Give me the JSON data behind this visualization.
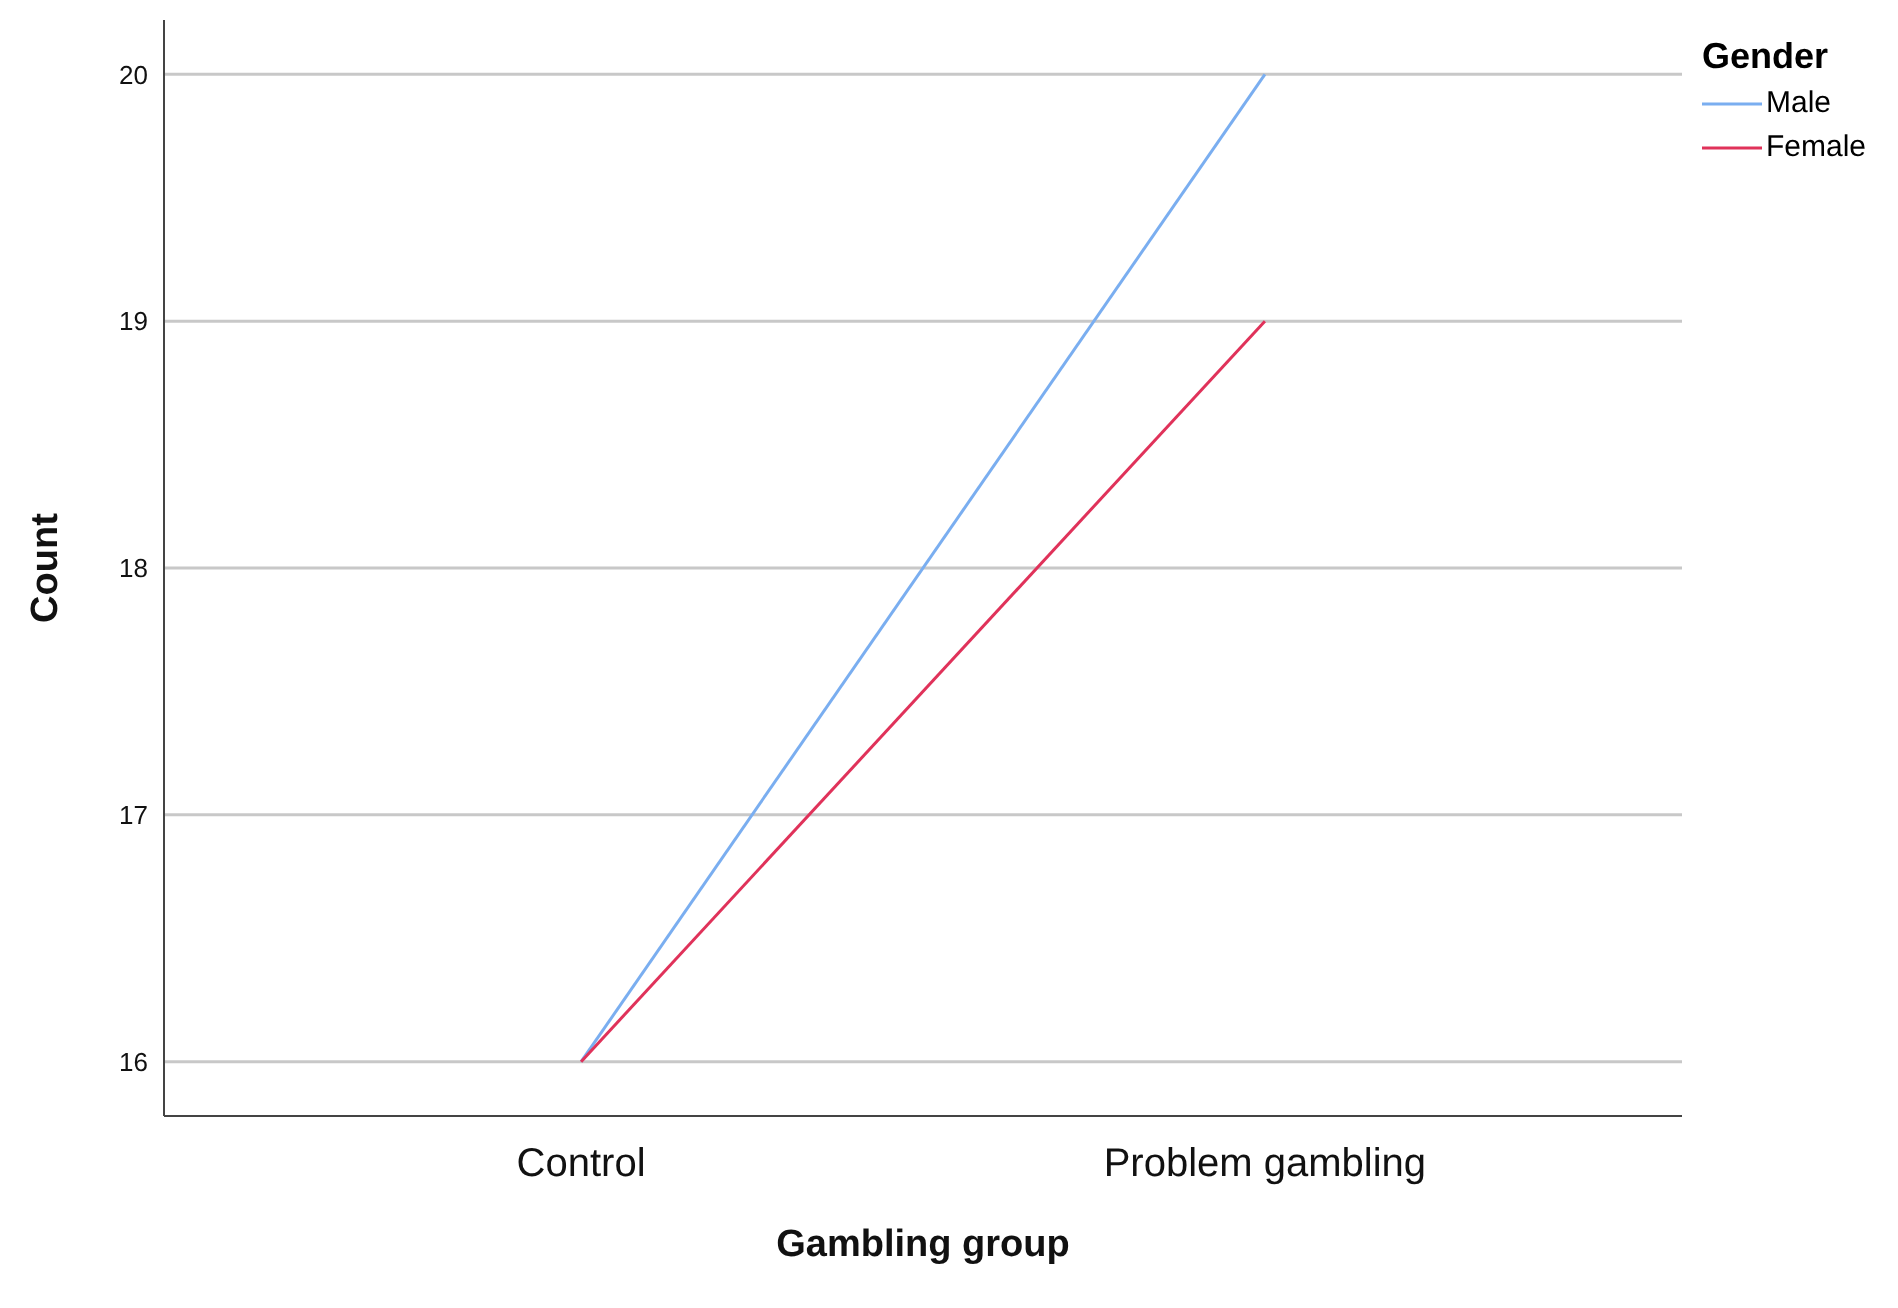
{
  "chart_data": {
    "type": "line",
    "xlabel": "Gambling group",
    "ylabel": "Count",
    "legend_title": "Gender",
    "categories": [
      "Control",
      "Problem gambling"
    ],
    "series": [
      {
        "name": "Male",
        "color": "#7aaef0",
        "values": [
          16,
          20
        ]
      },
      {
        "name": "Female",
        "color": "#e0325a",
        "values": [
          16,
          19
        ]
      }
    ],
    "ylim": [
      15.78,
      20.22
    ],
    "yticks": [
      16,
      17,
      18,
      19,
      20
    ],
    "grid": "y",
    "legend": "top right",
    "marker": "none",
    "line_style": "solid"
  }
}
